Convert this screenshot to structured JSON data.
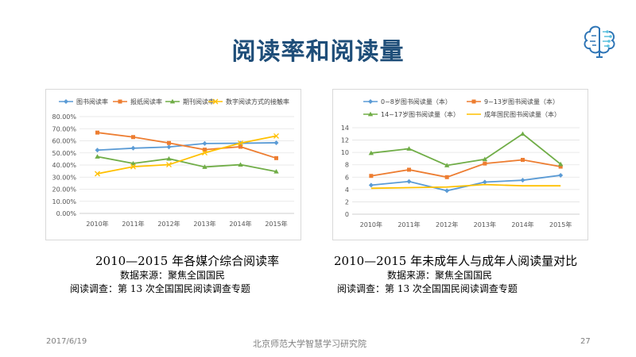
{
  "title": "阅读率和阅读量",
  "footer": {
    "date": "2017/6/19",
    "institution": "北京师范大学智慧学习研究院",
    "page": "27"
  },
  "captions": [
    {
      "title": "2010—2015 年各媒介综合阅读率",
      "source": "数据来源：聚焦全国国民",
      "survey": "阅读调查：第 13 次全国国民阅读调查专题"
    },
    {
      "title": "2010—2015 年未成年人与成年人阅读量对比",
      "source": "数据来源：聚焦全国国民",
      "survey": "阅读调查：第 13 次全国国民阅读调查专题"
    }
  ],
  "chart_data": [
    {
      "type": "line",
      "categories": [
        "2010年",
        "2011年",
        "2012年",
        "2013年",
        "2014年",
        "2015年"
      ],
      "ylim": [
        0,
        80
      ],
      "ytick_labels": [
        "0.00%",
        "10.00%",
        "20.00%",
        "30.00%",
        "40.00%",
        "50.00%",
        "60.00%",
        "70.00%",
        "80.00%"
      ],
      "legend_position": "top",
      "grid": true,
      "series": [
        {
          "name": "图书阅读率",
          "color": "#5b9bd5",
          "marker": "diamond",
          "values": [
            52.3,
            53.9,
            54.9,
            57.8,
            58.0,
            58.4
          ]
        },
        {
          "name": "报纸阅读率",
          "color": "#ed7d31",
          "marker": "square",
          "values": [
            66.8,
            63.1,
            58.2,
            52.7,
            55.1,
            45.7
          ]
        },
        {
          "name": "期刊阅读率",
          "color": "#70ad47",
          "marker": "triangle",
          "values": [
            46.9,
            41.3,
            45.2,
            38.4,
            40.3,
            34.6
          ]
        },
        {
          "name": "数字阅读方式的接触率",
          "color": "#ffc000",
          "marker": "x",
          "values": [
            32.8,
            38.6,
            40.3,
            50.1,
            58.1,
            64.0
          ]
        }
      ]
    },
    {
      "type": "line",
      "categories": [
        "2010年",
        "2011年",
        "2012年",
        "2013年",
        "2014年",
        "2015年"
      ],
      "ylim": [
        0,
        14
      ],
      "ytick_labels": [
        "0",
        "2",
        "4",
        "6",
        "8",
        "10",
        "12",
        "14"
      ],
      "legend_position": "top",
      "grid": true,
      "series": [
        {
          "name": "0~8岁图书阅读量（本）",
          "color": "#5b9bd5",
          "marker": "diamond",
          "values": [
            4.7,
            5.3,
            3.8,
            5.2,
            5.5,
            6.3
          ]
        },
        {
          "name": "9~13岁图书阅读量（本）",
          "color": "#ed7d31",
          "marker": "square",
          "values": [
            6.2,
            7.2,
            6.0,
            8.2,
            8.8,
            7.7
          ]
        },
        {
          "name": "14~17岁图书阅读量（本）",
          "color": "#70ad47",
          "marker": "triangle",
          "values": [
            9.9,
            10.6,
            7.9,
            8.9,
            13.0,
            8.1
          ]
        },
        {
          "name": "成年国民图书阅读量（本）",
          "color": "#ffc000",
          "marker": "none",
          "values": [
            4.2,
            4.3,
            4.4,
            4.8,
            4.6,
            4.6
          ]
        }
      ]
    }
  ]
}
